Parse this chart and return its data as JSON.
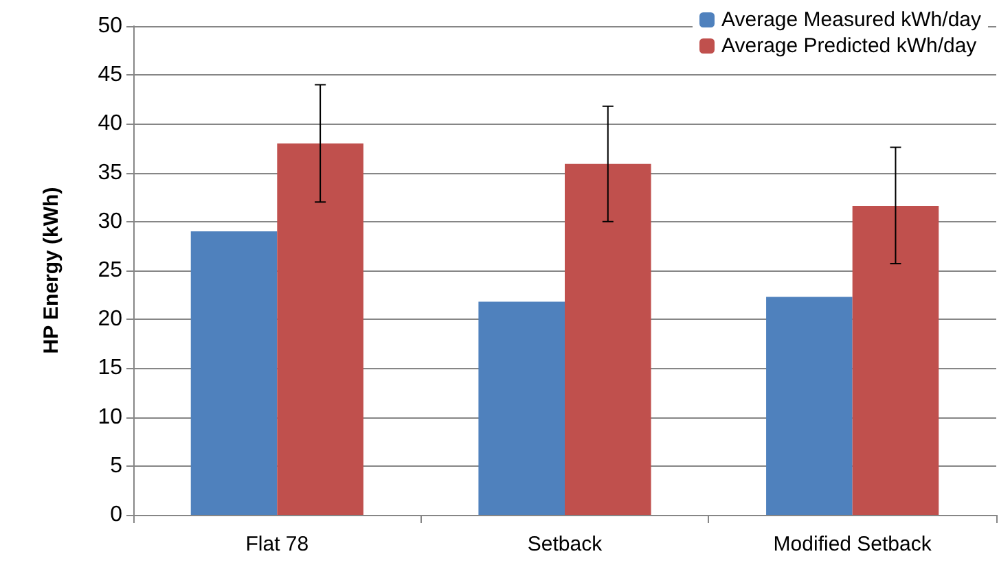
{
  "chart_data": {
    "type": "bar",
    "ylabel": "HP Energy (kWh)",
    "categories": [
      "Flat 78",
      "Setback",
      "Modified Setback"
    ],
    "series": [
      {
        "name": "Average Measured kWh/day",
        "color": "#4f81bd",
        "values": [
          29,
          21.8,
          22.3
        ]
      },
      {
        "name": "Average Predicted kWh/day",
        "color": "#c0504d",
        "values": [
          38,
          35.9,
          31.6
        ],
        "errors": [
          [
            32,
            44
          ],
          [
            30,
            41.8
          ],
          [
            25.7,
            37.6
          ]
        ]
      }
    ],
    "ylim": [
      0,
      50
    ],
    "yticks": [
      0,
      5,
      10,
      15,
      20,
      25,
      30,
      35,
      40,
      45,
      50
    ],
    "grid": "y",
    "legend": "top right"
  }
}
